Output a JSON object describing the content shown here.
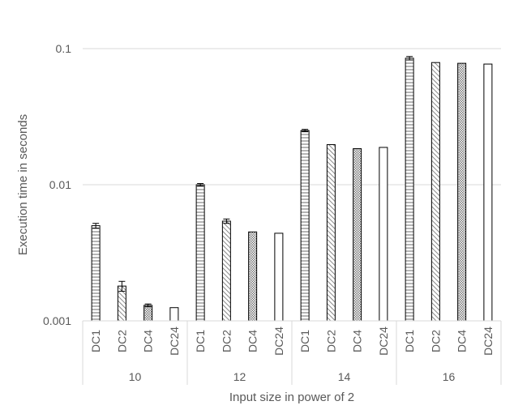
{
  "chart_data": {
    "type": "bar",
    "title": "",
    "xlabel": "Input size in power of 2",
    "ylabel": "Execution time in seconds",
    "yscale": "log",
    "ylim": [
      0.001,
      0.1
    ],
    "y_ticks": [
      "0.001",
      "0.01",
      "0.1"
    ],
    "y_tick_values": [
      0.001,
      0.01,
      0.1
    ],
    "grid": "horizontal",
    "legend": "none",
    "series_labels": [
      "DC1",
      "DC2",
      "DC4",
      "DC24"
    ],
    "series_patterns": [
      "horizontal-lines",
      "diagonal-hatch",
      "dotted",
      "solid-white"
    ],
    "groups": [
      {
        "label": "10",
        "values": [
          0.005,
          0.0018,
          0.0013,
          0.00125
        ],
        "errors": [
          0.0002,
          0.00015,
          3e-05,
          0
        ]
      },
      {
        "label": "12",
        "values": [
          0.01,
          0.0054,
          0.0045,
          0.0044
        ],
        "errors": [
          0.0002,
          0.0002,
          0,
          0
        ]
      },
      {
        "label": "14",
        "values": [
          0.025,
          0.0197,
          0.0184,
          0.0188
        ],
        "errors": [
          0.0005,
          0,
          0,
          0
        ]
      },
      {
        "label": "16",
        "values": [
          0.085,
          0.079,
          0.078,
          0.077
        ],
        "errors": [
          0.0025,
          0,
          0,
          0
        ]
      }
    ],
    "colors": {
      "bar_stroke": "#000000",
      "bar_fill": "#ffffff",
      "grid": "#d9d9d9",
      "axis": "#d9d9d9",
      "text": "#595959"
    }
  }
}
